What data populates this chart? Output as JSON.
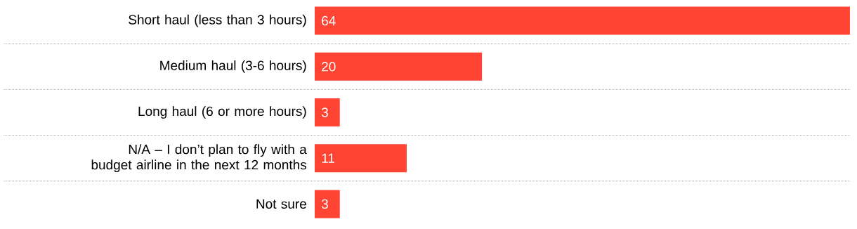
{
  "chart_data": {
    "type": "bar",
    "orientation": "horizontal",
    "categories": [
      "Short haul (less than 3 hours)",
      "Medium haul (3-6 hours)",
      "Long haul (6 or more hours)",
      "N/A – I don’t plan to fly with a budget airline in the next 12 months",
      "Not sure"
    ],
    "values": [
      64,
      20,
      3,
      11,
      3
    ],
    "color": "#ff4433",
    "data_labels": true,
    "grid": "y"
  }
}
